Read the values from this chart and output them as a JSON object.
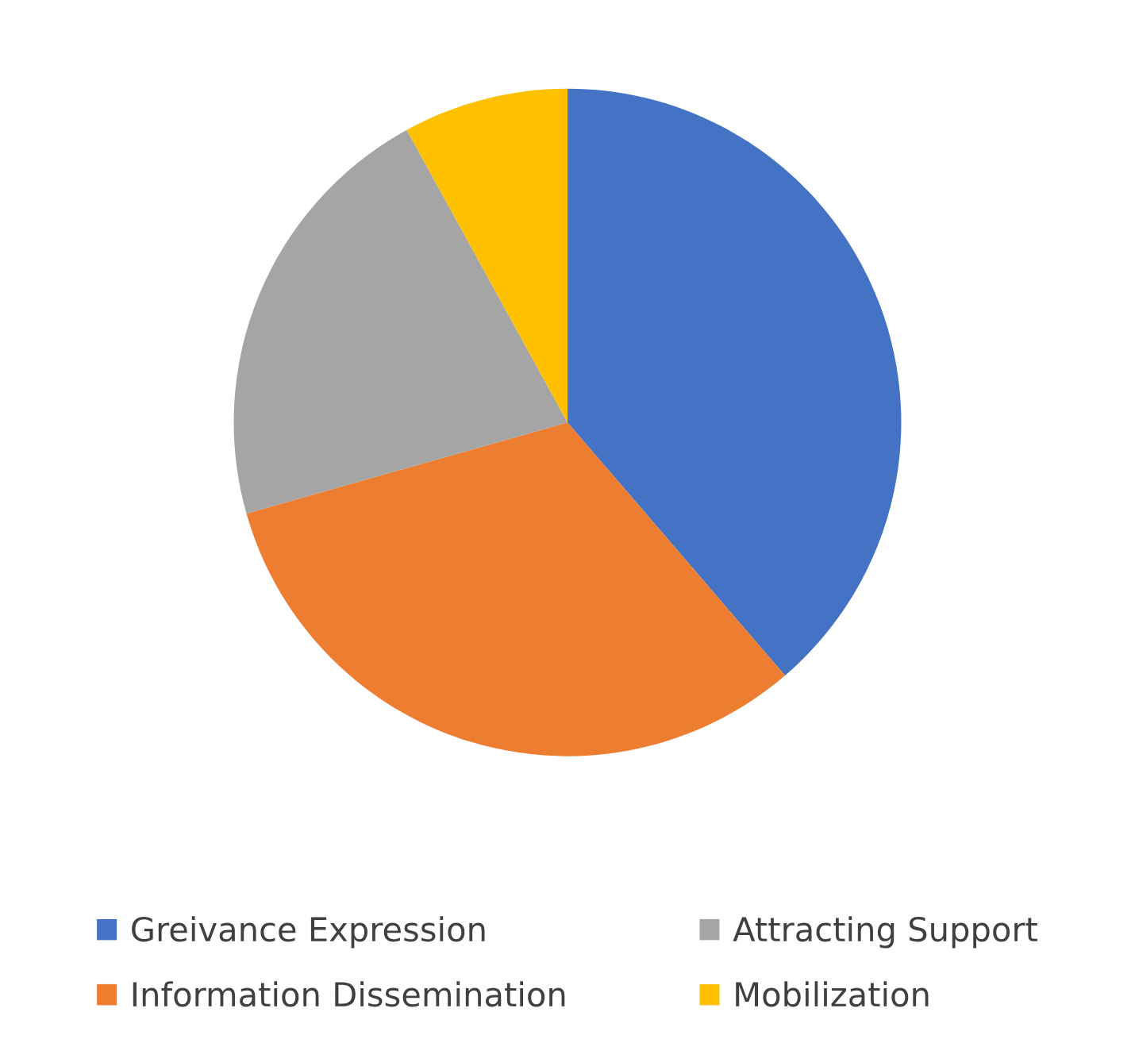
{
  "chart_data": {
    "type": "pie",
    "categories": [
      "Greivance Expression",
      "Information Dissemination",
      "Attracting Support",
      "Mobilization"
    ],
    "values": [
      38.7,
      31.9,
      21.4,
      8.0
    ],
    "colors": [
      "#4472c4",
      "#ed7d31",
      "#a5a5a5",
      "#ffc000"
    ],
    "legend": "bottom"
  }
}
